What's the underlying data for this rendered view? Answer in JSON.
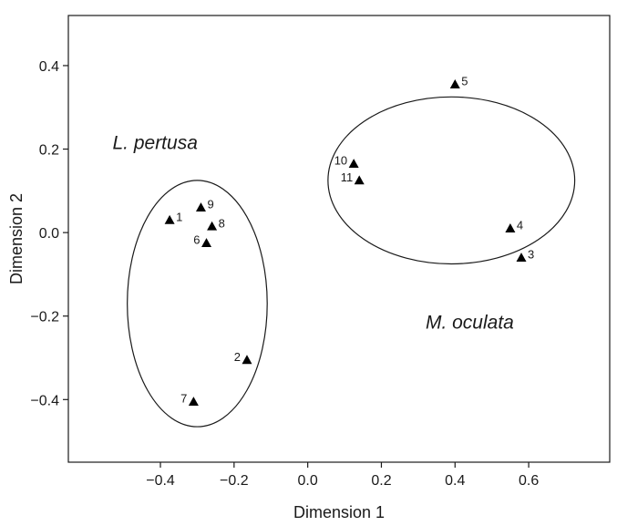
{
  "chart_data": {
    "type": "scatter",
    "title": "",
    "xlabel": "Dimension 1",
    "ylabel": "Dimension 2",
    "xlim": [
      -0.65,
      0.82
    ],
    "ylim": [
      -0.55,
      0.52
    ],
    "xticks": [
      -0.4,
      -0.2,
      0.0,
      0.2,
      0.4,
      0.6
    ],
    "yticks": [
      -0.4,
      -0.2,
      0.0,
      0.2,
      0.4
    ],
    "xtick_labels": [
      "−0.4",
      "−0.2",
      "0.0",
      "0.2",
      "0.4",
      "0.6"
    ],
    "ytick_labels": [
      "−0.4",
      "−0.2",
      "0.0",
      "0.2",
      "0.4"
    ],
    "grid": false,
    "marker": "triangle",
    "color": "#000000",
    "points": [
      {
        "label": "1",
        "x": -0.375,
        "y": 0.03,
        "label_side": "right"
      },
      {
        "label": "2",
        "x": -0.165,
        "y": -0.305,
        "label_side": "left"
      },
      {
        "label": "3",
        "x": 0.58,
        "y": -0.06,
        "label_side": "right"
      },
      {
        "label": "4",
        "x": 0.55,
        "y": 0.01,
        "label_side": "right"
      },
      {
        "label": "5",
        "x": 0.4,
        "y": 0.355,
        "label_side": "right"
      },
      {
        "label": "6",
        "x": -0.275,
        "y": -0.025,
        "label_side": "left"
      },
      {
        "label": "7",
        "x": -0.31,
        "y": -0.405,
        "label_side": "left"
      },
      {
        "label": "8",
        "x": -0.26,
        "y": 0.015,
        "label_side": "right"
      },
      {
        "label": "9",
        "x": -0.29,
        "y": 0.06,
        "label_side": "right"
      },
      {
        "label": "10",
        "x": 0.125,
        "y": 0.165,
        "label_side": "left"
      },
      {
        "label": "11",
        "x": 0.14,
        "y": 0.125,
        "label_side": "left"
      }
    ],
    "groups": [
      {
        "name": "L. pertusa",
        "ellipse": {
          "cx": -0.3,
          "cy": -0.17,
          "rx": 0.19,
          "ry": 0.295
        },
        "label_x": -0.53,
        "label_y": 0.2
      },
      {
        "name": "M. oculata",
        "ellipse": {
          "cx": 0.39,
          "cy": 0.125,
          "rx": 0.335,
          "ry": 0.2
        },
        "label_x": 0.32,
        "label_y": -0.23
      }
    ]
  }
}
